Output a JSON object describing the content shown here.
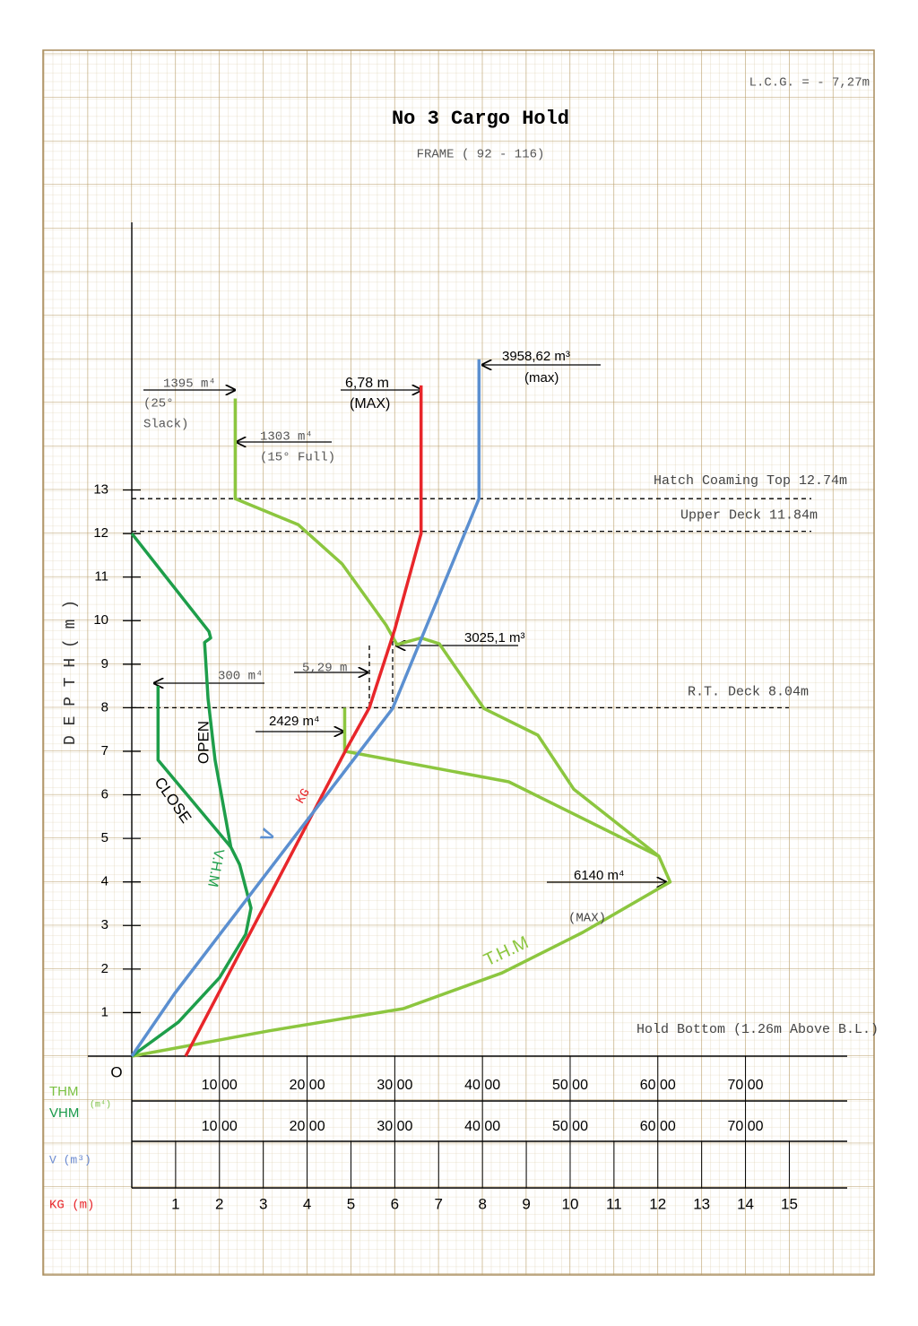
{
  "chart_data": {
    "type": "line",
    "title": "No 3 Cargo Hold",
    "subtitle": "FRAME ( 92 - 116)",
    "note": "L.C.G. =  - 7,27m",
    "ylabel": "D E P T H ( m )",
    "origin_label": "O",
    "ylim": [
      0,
      19
    ],
    "yticks": [
      1,
      2,
      3,
      4,
      5,
      6,
      7,
      8,
      9,
      10,
      11,
      12,
      13
    ],
    "xlim": [
      0,
      8160
    ],
    "xticks": [
      {
        "value": 1000,
        "label": "10 00"
      },
      {
        "value": 2000,
        "label": "20 00"
      },
      {
        "value": 3000,
        "label": "30 00"
      },
      {
        "value": 4000,
        "label": "40 00"
      },
      {
        "value": 5000,
        "label": "50 00"
      },
      {
        "value": 6000,
        "label": "60 00"
      },
      {
        "value": 7000,
        "label": "70 00"
      }
    ],
    "x2lim": [
      0,
      16.32
    ],
    "x2ticks": [
      1,
      2,
      3,
      4,
      5,
      6,
      7,
      8,
      9,
      10,
      11,
      12,
      13,
      14,
      15
    ],
    "row_labels": [
      "THM",
      "VHM",
      "(m⁴)",
      "V (m³)",
      "KG (m)"
    ],
    "decks": [
      {
        "label": "Hatch Coaming Top 12.74m",
        "depth": 12.8
      },
      {
        "label": "Upper Deck 11.84m",
        "depth": 12.05
      },
      {
        "label": "R.T. Deck 8.04m",
        "depth": 8.0
      }
    ],
    "series": [
      {
        "name": "T.H.M",
        "color": "#8cc63f",
        "x": [
          0,
          1564,
          3098,
          4223,
          5143,
          6140,
          6012,
          5041,
          4632,
          4018,
          3507,
          3300,
          3025.1,
          2900,
          2400,
          1900,
          1180,
          1180
        ],
        "values": [
          0,
          0.58,
          1.09,
          1.91,
          2.84,
          4.0,
          4.59,
          6.13,
          7.37,
          7.98,
          9.47,
          9.6,
          9.45,
          9.9,
          11.3,
          12.2,
          12.8,
          15.1
        ]
      },
      {
        "color": "#8cc63f",
        "x": [
          6012,
          4300,
          2429,
          2429
        ],
        "values": [
          4.59,
          6.3,
          7.0,
          8.0
        ]
      },
      {
        "name": "OPEN",
        "color": "#1e9e4a",
        "x": [
          0,
          532,
          1000,
          1300,
          1360,
          1230,
          1130,
          950,
          870,
          830,
          900,
          880,
          0
        ],
        "values": [
          0,
          0.78,
          1.8,
          2.8,
          3.4,
          4.4,
          4.8,
          6.8,
          8.2,
          9.5,
          9.6,
          9.75,
          12
        ]
      },
      {
        "name": "CLOSE",
        "color": "#1e9e4a",
        "x": [
          1130,
          300,
          300
        ],
        "values": [
          4.8,
          6.8,
          8.5
        ]
      },
      {
        "name": "KG",
        "color": "#e8262a",
        "axis": "x2",
        "x": [
          1.23,
          4.87,
          5.42,
          6.0,
          6.6,
          6.6
        ],
        "values": [
          0,
          7.0,
          8.0,
          9.8,
          12.0,
          15.4
        ]
      },
      {
        "name": "V",
        "color": "#5b8fd0",
        "x": [
          0,
          490,
          2975,
          3960,
          3960
        ],
        "values": [
          0,
          1.44,
          7.98,
          12.8,
          16.0
        ]
      }
    ],
    "annotations": [
      "3958,62 m³",
      "(max)",
      "6,78 m",
      "(MAX)",
      "1395 m⁴",
      "(25°",
      "Slack)",
      "1303 m⁴",
      "(15° Full)",
      "3025,1 m³",
      "300 m⁴",
      "5,29 m",
      "2429 m⁴",
      "6140 m⁴",
      "(MAX)",
      "Hold Bottom (1.26m Above B.L.)",
      "V.H.M"
    ]
  }
}
